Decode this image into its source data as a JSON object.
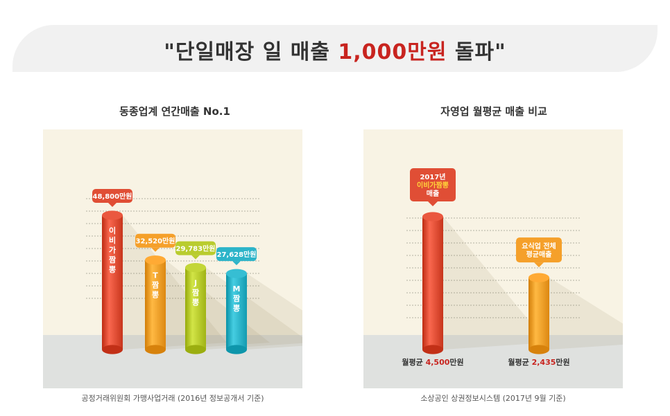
{
  "header": {
    "quote_open": "\"",
    "title_part1": "단일매장 일 매출 ",
    "title_highlight": "1,000만원",
    "title_part2": " 돌파",
    "quote_close": "\"",
    "accent_color": "#c8241f"
  },
  "chart_data": [
    {
      "type": "bar",
      "title": "동종업계 연간매출 No.1",
      "source": "공정거래위원회 가맹사업거래 (2016년 정보공개서 기준)",
      "categories": [
        "이비가짬뽕",
        "T짬뽕",
        "J짬뽕",
        "M짬뽕"
      ],
      "bar_labels": [
        "이\n비\n가\n짬\n뽕",
        "T\n짬\n뽕",
        "J\n짬\n뽕",
        "M\n짬\n뽕"
      ],
      "values": [
        48800,
        32520,
        29783,
        27628
      ],
      "value_labels": [
        "48,800만원",
        "32,520만원",
        "29,783만원",
        "27,628만원"
      ],
      "colors": [
        "#e04e35",
        "#f5a02a",
        "#b9cc2e",
        "#2cb4c9"
      ]
    },
    {
      "type": "bar",
      "title": "자영업 월평균 매출 비교",
      "source": "소상공인 상권정보시스템 (2017년 9월 기준)",
      "categories": [
        "이비가짬뽕",
        "요식업 전체"
      ],
      "callouts": [
        {
          "line1": "2017년",
          "line2": "이비가짬뽕",
          "line3": "매출"
        },
        {
          "line1": "요식업 전체",
          "line2": "평균매출"
        }
      ],
      "values": [
        4500,
        2435
      ],
      "footer_labels": [
        {
          "prefix": "월평균 ",
          "value": "4,500",
          "suffix": "만원"
        },
        {
          "prefix": "월평균 ",
          "value": "2,435",
          "suffix": "만원"
        }
      ],
      "colors": [
        "#e04e35",
        "#f5a02a"
      ]
    }
  ]
}
